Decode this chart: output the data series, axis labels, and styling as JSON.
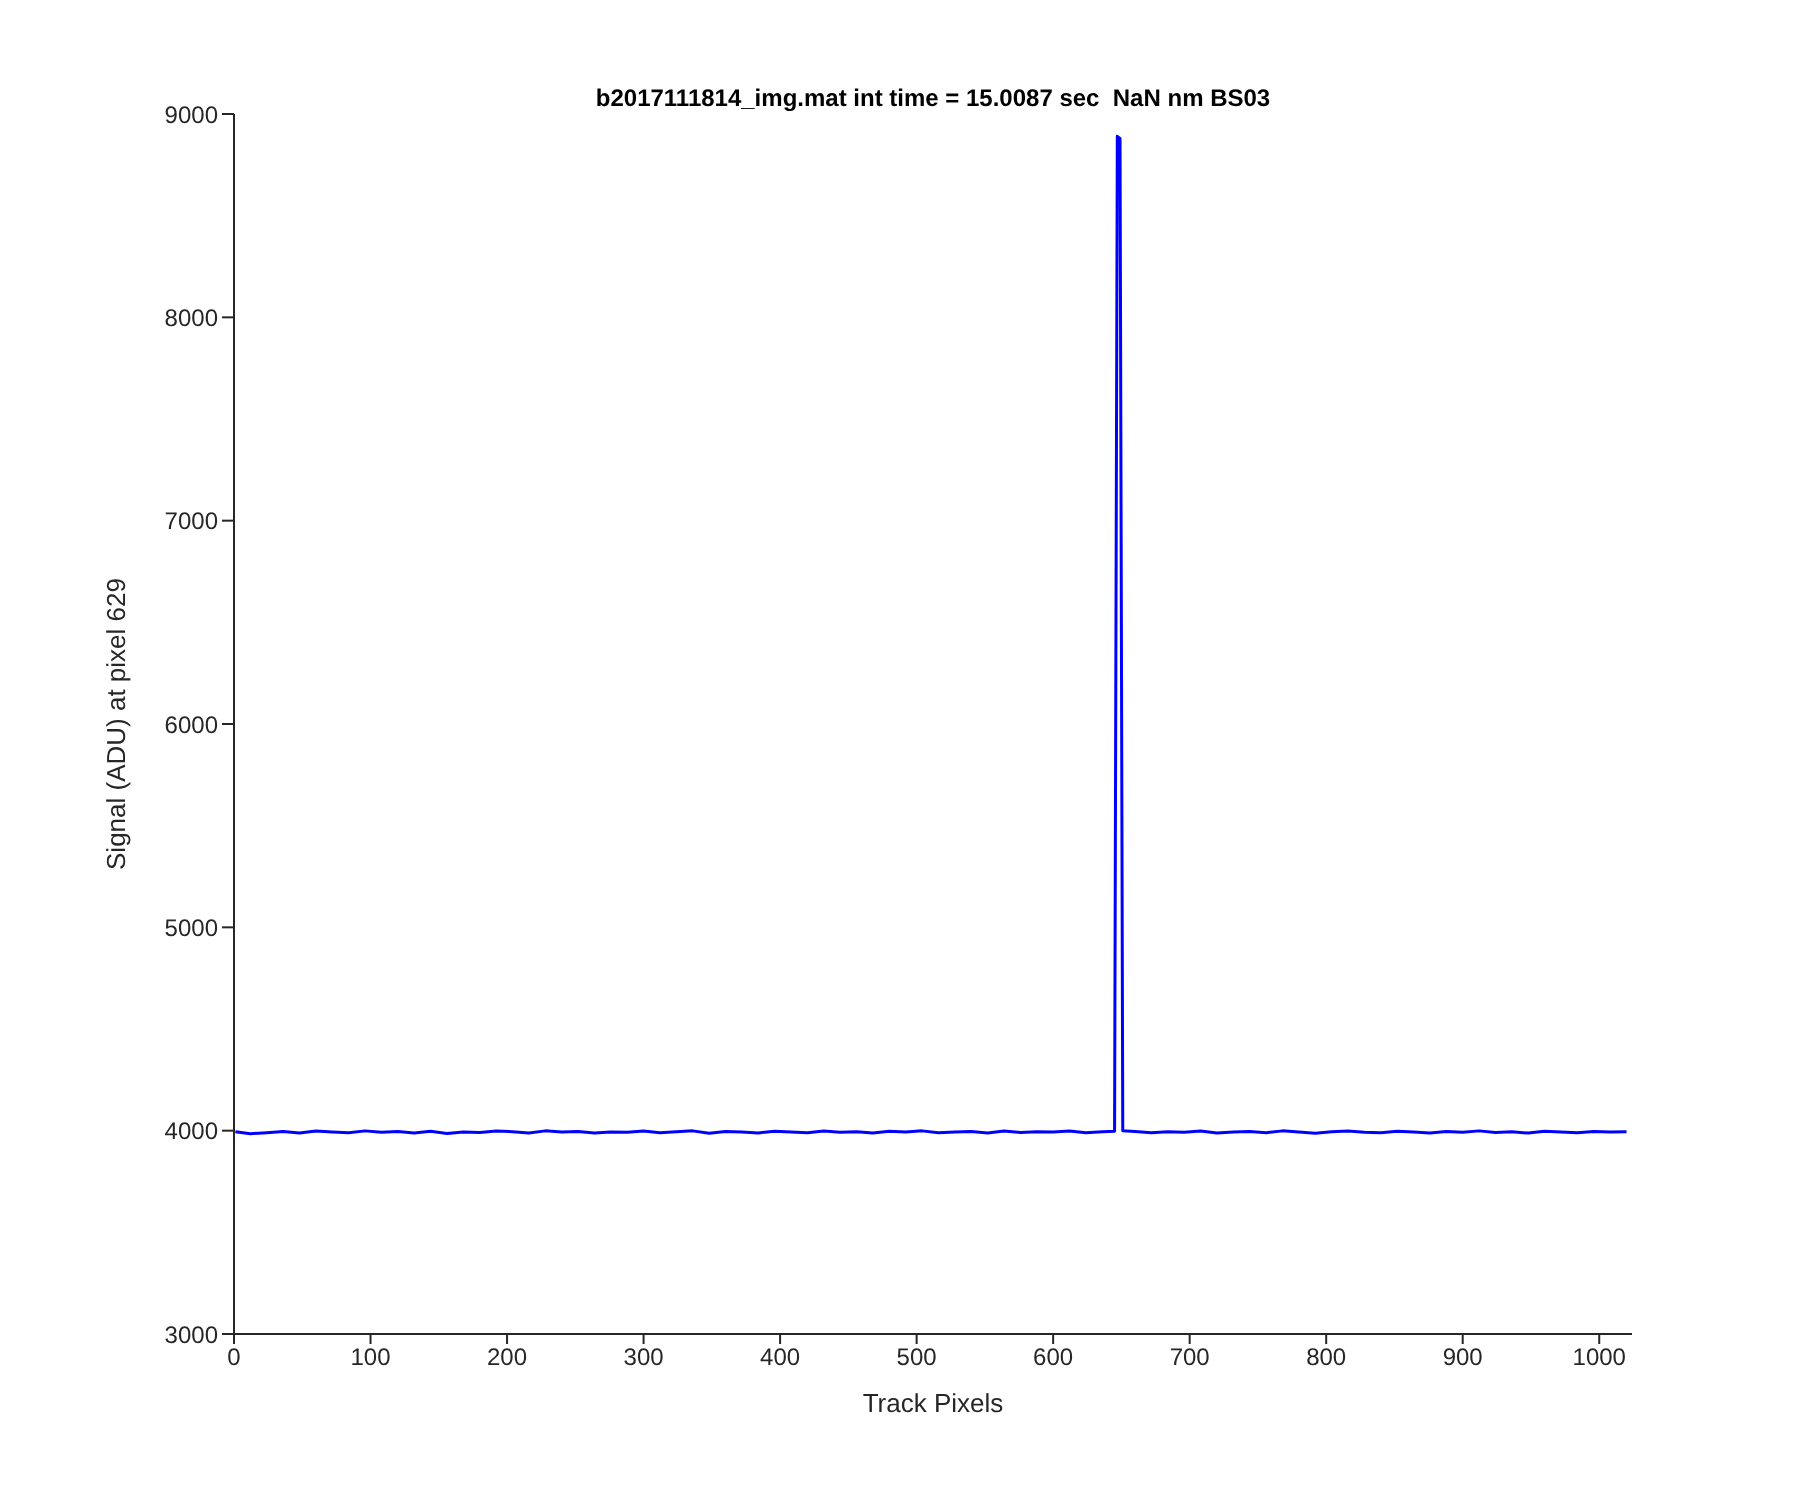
{
  "chart_data": {
    "type": "line",
    "title": "b2017111814_img.mat int time = 15.0087 sec  NaN nm BS03",
    "xlabel": "Track Pixels",
    "ylabel": "Signal (ADU) at pixel 629",
    "xlim": [
      0,
      1024
    ],
    "xticks": [
      0,
      100,
      200,
      300,
      400,
      500,
      600,
      700,
      800,
      900,
      1000
    ],
    "ylim": [
      3000,
      9000
    ],
    "yticks": [
      3000,
      4000,
      5000,
      6000,
      7000,
      8000,
      9000
    ],
    "grid": false,
    "legend": false,
    "marker": "none",
    "line_style": "solid",
    "series": [
      {
        "color": "#0000ff",
        "x": [
          1,
          12,
          24,
          36,
          48,
          60,
          72,
          84,
          96,
          108,
          120,
          132,
          144,
          156,
          168,
          180,
          192,
          204,
          216,
          228,
          240,
          252,
          264,
          276,
          288,
          300,
          312,
          324,
          336,
          348,
          360,
          372,
          384,
          396,
          408,
          420,
          432,
          444,
          456,
          468,
          480,
          492,
          504,
          516,
          528,
          540,
          552,
          564,
          576,
          588,
          600,
          612,
          624,
          636,
          645,
          647,
          649,
          651,
          660,
          672,
          684,
          696,
          708,
          720,
          732,
          744,
          756,
          768,
          780,
          792,
          804,
          816,
          828,
          840,
          852,
          864,
          876,
          888,
          900,
          912,
          924,
          936,
          948,
          960,
          972,
          984,
          996,
          1008,
          1020
        ],
        "values": [
          3995,
          3985,
          3990,
          3996,
          3988,
          3998,
          3994,
          3990,
          3999,
          3992,
          3996,
          3989,
          3997,
          3986,
          3994,
          3991,
          3998,
          3995,
          3989,
          3999,
          3993,
          3996,
          3988,
          3994,
          3992,
          3998,
          3990,
          3995,
          3999,
          3987,
          3996,
          3993,
          3989,
          3997,
          3994,
          3990,
          3998,
          3992,
          3995,
          3988,
          3997,
          3993,
          3999,
          3990,
          3994,
          3996,
          3989,
          3998,
          3991,
          3995,
          3993,
          3998,
          3990,
          3995,
          3997,
          8890,
          8880,
          4000,
          3996,
          3990,
          3995,
          3992,
          3998,
          3988,
          3994,
          3996,
          3990,
          3999,
          3993,
          3987,
          3995,
          3998,
          3992,
          3990,
          3997,
          3994,
          3989,
          3996,
          3992,
          3999,
          3991,
          3995,
          3988,
          3997,
          3993,
          3990,
          3996,
          3994,
          3995
        ]
      }
    ]
  }
}
